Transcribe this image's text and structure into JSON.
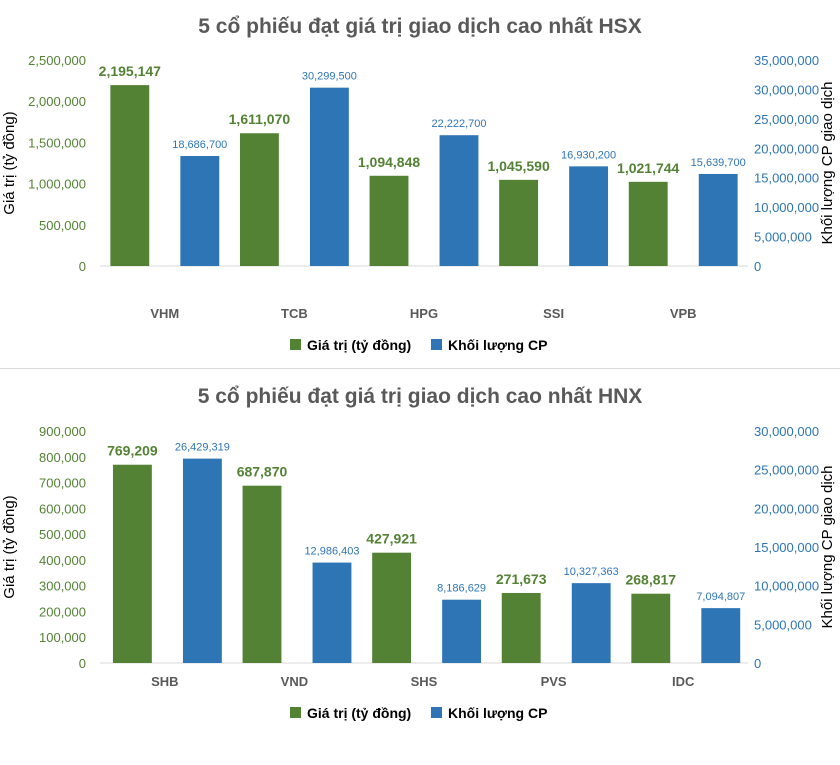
{
  "colors": {
    "green": "#548235",
    "blue": "#2e75b6",
    "title": "#595959",
    "axis_text": "#404040",
    "category_text": "#595959",
    "baseline": "#d9d9d9"
  },
  "chart_data": [
    {
      "type": "bar",
      "title": "5 cổ phiếu đạt giá trị giao dịch cao nhất HSX",
      "categories": [
        "VHM",
        "TCB",
        "HPG",
        "SSI",
        "VPB"
      ],
      "y_left_label": "Giá trị (tỷ đồng)",
      "y_right_label": "Khối lượng CP giao dịch",
      "y_left_range": [
        0,
        2500000
      ],
      "y_left_ticks": [
        "0",
        "500,000",
        "1,000,000",
        "1,500,000",
        "2,000,000",
        "2,500,000"
      ],
      "y_right_range": [
        0,
        35000000
      ],
      "y_right_ticks": [
        "0",
        "5,000,000",
        "10,000,000",
        "15,000,000",
        "20,000,000",
        "25,000,000",
        "30,000,000",
        "35,000,000"
      ],
      "grid": false,
      "legend_position": "bottom",
      "series": [
        {
          "name": "Giá trị (tỷ đồng)",
          "axis": "left",
          "color": "#548235",
          "values": [
            2195147,
            1611070,
            1094848,
            1045590,
            1021744
          ],
          "labels": [
            "2,195,147",
            "1,611,070",
            "1,094,848",
            "1,045,590",
            "1,021,744"
          ]
        },
        {
          "name": "Khối lượng CP",
          "axis": "right",
          "color": "#2e75b6",
          "values": [
            18686700,
            30299500,
            22222700,
            16930200,
            15639700
          ],
          "labels": [
            "18,686,700",
            "30,299,500",
            "22,222,700",
            "16,930,200",
            "15,639,700"
          ]
        }
      ]
    },
    {
      "type": "bar",
      "title": "5 cổ phiếu đạt giá trị giao dịch cao nhất HNX",
      "categories": [
        "SHB",
        "VND",
        "SHS",
        "PVS",
        "IDC"
      ],
      "y_left_label": "Giá trị (tỷ đồng)",
      "y_right_label": "Khối lượng CP giao dịch",
      "y_left_range": [
        0,
        900000
      ],
      "y_left_ticks": [
        "0",
        "100,000",
        "200,000",
        "300,000",
        "400,000",
        "500,000",
        "600,000",
        "700,000",
        "800,000",
        "900,000"
      ],
      "y_right_range": [
        0,
        30000000
      ],
      "y_right_ticks": [
        "0",
        "5,000,000",
        "10,000,000",
        "15,000,000",
        "20,000,000",
        "25,000,000",
        "30,000,000"
      ],
      "grid": false,
      "legend_position": "bottom",
      "series": [
        {
          "name": "Giá trị (tỷ đồng)",
          "axis": "left",
          "color": "#548235",
          "values": [
            769209,
            687870,
            427921,
            271673,
            268817
          ],
          "labels": [
            "769,209",
            "687,870",
            "427,921",
            "271,673",
            "268,817"
          ]
        },
        {
          "name": "Khối lượng CP",
          "axis": "right",
          "color": "#2e75b6",
          "values": [
            26429319,
            12986403,
            8186629,
            10327363,
            7094807
          ],
          "labels": [
            "26,429,319",
            "12,986,403",
            "8,186,629",
            "10,327,363",
            "7,094,807"
          ]
        }
      ]
    }
  ]
}
